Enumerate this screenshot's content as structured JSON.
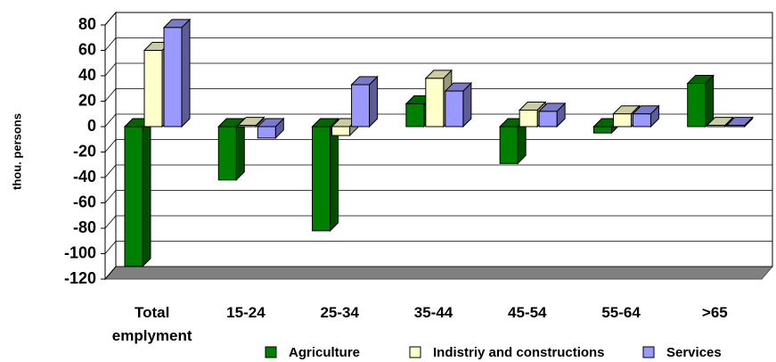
{
  "chart_data": {
    "type": "bar3d",
    "y_axis_label": "thou. persons",
    "categories": [
      "Total emplyment",
      "15-24",
      "25-34",
      "35-44",
      "45-54",
      "55-64",
      ">65"
    ],
    "series": [
      {
        "name": "Agriculture",
        "color": "#008000",
        "values": [
          -110,
          -42,
          -82,
          18,
          -29,
          -5,
          34
        ]
      },
      {
        "name": "Indistriy and constructions",
        "color": "#ffffcc",
        "values": [
          60,
          1,
          -7,
          38,
          13,
          10,
          1
        ]
      },
      {
        "name": "Services",
        "color": "#9999ff",
        "values": [
          78,
          -9,
          33,
          28,
          12,
          10,
          1
        ]
      }
    ],
    "ylim": [
      -120,
      80
    ],
    "yticks": [
      -120,
      -100,
      -80,
      -60,
      -40,
      -20,
      0,
      20,
      40,
      60,
      80
    ],
    "grid": true
  }
}
